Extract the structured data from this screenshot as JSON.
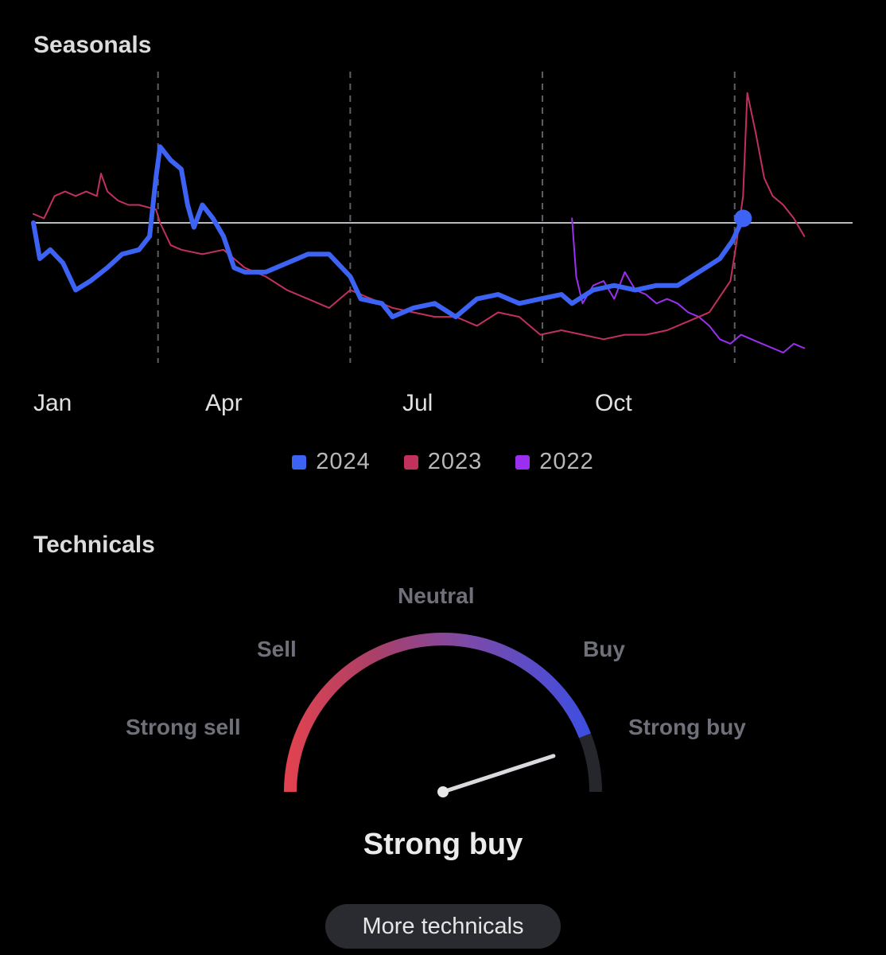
{
  "seasonals": {
    "title": "Seasonals",
    "months": [
      "Jan",
      "Apr",
      "Jul",
      "Oct"
    ],
    "legend": [
      {
        "label": "2024",
        "color": "#3d63f5"
      },
      {
        "label": "2023",
        "color": "#c2305c"
      },
      {
        "label": "2022",
        "color": "#9b2ff0"
      }
    ]
  },
  "chart_data": {
    "type": "line",
    "xlabel": "",
    "ylabel": "",
    "x_unit": "day of year",
    "xlim": [
      0,
      366
    ],
    "ylim": [
      -1.6,
      1.6
    ],
    "reference_line": 0,
    "grid": "vertical dashed lines at quarter starts",
    "series": [
      {
        "name": "2024",
        "color": "#3d63f5",
        "points": [
          [
            0,
            0.0
          ],
          [
            3,
            -0.4
          ],
          [
            8,
            -0.3
          ],
          [
            14,
            -0.45
          ],
          [
            20,
            -0.75
          ],
          [
            27,
            -0.65
          ],
          [
            35,
            -0.5
          ],
          [
            42,
            -0.35
          ],
          [
            50,
            -0.3
          ],
          [
            55,
            -0.15
          ],
          [
            58,
            0.5
          ],
          [
            60,
            0.85
          ],
          [
            65,
            0.7
          ],
          [
            70,
            0.6
          ],
          [
            73,
            0.2
          ],
          [
            76,
            -0.05
          ],
          [
            80,
            0.2
          ],
          [
            85,
            0.05
          ],
          [
            90,
            -0.15
          ],
          [
            95,
            -0.5
          ],
          [
            100,
            -0.55
          ],
          [
            110,
            -0.55
          ],
          [
            120,
            -0.45
          ],
          [
            130,
            -0.35
          ],
          [
            140,
            -0.35
          ],
          [
            150,
            -0.6
          ],
          [
            155,
            -0.85
          ],
          [
            165,
            -0.9
          ],
          [
            170,
            -1.05
          ],
          [
            180,
            -0.95
          ],
          [
            190,
            -0.9
          ],
          [
            200,
            -1.05
          ],
          [
            210,
            -0.85
          ],
          [
            220,
            -0.8
          ],
          [
            230,
            -0.9
          ],
          [
            240,
            -0.85
          ],
          [
            250,
            -0.8
          ],
          [
            255,
            -0.9
          ],
          [
            265,
            -0.75
          ],
          [
            275,
            -0.7
          ],
          [
            285,
            -0.75
          ],
          [
            295,
            -0.7
          ],
          [
            305,
            -0.7
          ],
          [
            315,
            -0.55
          ],
          [
            325,
            -0.4
          ],
          [
            331,
            -0.2
          ],
          [
            336,
            0.05
          ]
        ]
      },
      {
        "name": "2023",
        "color": "#c2305c",
        "points": [
          [
            0,
            0.1
          ],
          [
            5,
            0.05
          ],
          [
            10,
            0.3
          ],
          [
            15,
            0.35
          ],
          [
            20,
            0.3
          ],
          [
            25,
            0.35
          ],
          [
            30,
            0.3
          ],
          [
            32,
            0.55
          ],
          [
            35,
            0.35
          ],
          [
            40,
            0.25
          ],
          [
            45,
            0.2
          ],
          [
            50,
            0.2
          ],
          [
            58,
            0.15
          ],
          [
            60,
            0.0
          ],
          [
            65,
            -0.25
          ],
          [
            70,
            -0.3
          ],
          [
            80,
            -0.35
          ],
          [
            90,
            -0.3
          ],
          [
            100,
            -0.5
          ],
          [
            110,
            -0.6
          ],
          [
            120,
            -0.75
          ],
          [
            130,
            -0.85
          ],
          [
            140,
            -0.95
          ],
          [
            150,
            -0.75
          ],
          [
            160,
            -0.85
          ],
          [
            170,
            -0.95
          ],
          [
            180,
            -1.0
          ],
          [
            190,
            -1.05
          ],
          [
            200,
            -1.05
          ],
          [
            210,
            -1.15
          ],
          [
            220,
            -1.0
          ],
          [
            230,
            -1.05
          ],
          [
            240,
            -1.25
          ],
          [
            250,
            -1.2
          ],
          [
            260,
            -1.25
          ],
          [
            270,
            -1.3
          ],
          [
            280,
            -1.25
          ],
          [
            290,
            -1.25
          ],
          [
            300,
            -1.2
          ],
          [
            310,
            -1.1
          ],
          [
            320,
            -1.0
          ],
          [
            330,
            -0.65
          ],
          [
            333,
            -0.2
          ],
          [
            336,
            0.3
          ],
          [
            338,
            1.45
          ],
          [
            342,
            1.0
          ],
          [
            346,
            0.5
          ],
          [
            350,
            0.3
          ],
          [
            355,
            0.2
          ],
          [
            360,
            0.05
          ],
          [
            365,
            -0.15
          ]
        ]
      },
      {
        "name": "2022",
        "color": "#9b2ff0",
        "points": [
          [
            255,
            0.05
          ],
          [
            257,
            -0.6
          ],
          [
            260,
            -0.9
          ],
          [
            265,
            -0.7
          ],
          [
            270,
            -0.65
          ],
          [
            275,
            -0.85
          ],
          [
            280,
            -0.55
          ],
          [
            285,
            -0.75
          ],
          [
            290,
            -0.8
          ],
          [
            295,
            -0.9
          ],
          [
            300,
            -0.85
          ],
          [
            305,
            -0.9
          ],
          [
            310,
            -1.0
          ],
          [
            315,
            -1.05
          ],
          [
            320,
            -1.15
          ],
          [
            325,
            -1.3
          ],
          [
            330,
            -1.35
          ],
          [
            335,
            -1.25
          ],
          [
            340,
            -1.3
          ],
          [
            345,
            -1.35
          ],
          [
            350,
            -1.4
          ],
          [
            355,
            -1.45
          ],
          [
            360,
            -1.35
          ],
          [
            365,
            -1.4
          ]
        ]
      }
    ],
    "current_point": {
      "series": "2024",
      "x": 336,
      "y": 0.05
    }
  },
  "technicals": {
    "title": "Technicals",
    "labels": {
      "strong_sell": "Strong sell",
      "sell": "Sell",
      "neutral": "Neutral",
      "buy": "Buy",
      "strong_buy": "Strong buy"
    },
    "needle_value": 0.9,
    "result": "Strong buy",
    "button": "More technicals"
  }
}
